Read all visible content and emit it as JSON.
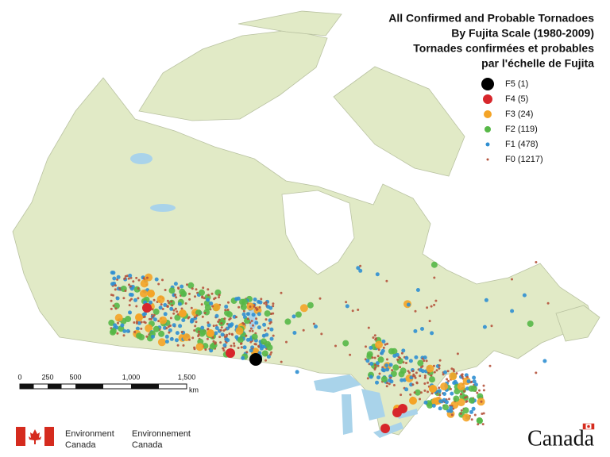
{
  "header": {
    "title": [
      "All Confirmed and Probable Tornadoes",
      "By Fujita Scale (1980-2009)",
      "Tornades confirmées et probables",
      "par l'échelle de Fujita"
    ]
  },
  "legend": [
    {
      "label": "F5 (1)",
      "color": "#000000"
    },
    {
      "label": "F4 (5)",
      "color": "#d7262b"
    },
    {
      "label": "F3 (24)",
      "color": "#f4a427"
    },
    {
      "label": "F2 (119)",
      "color": "#57b847"
    },
    {
      "label": "F1 (478)",
      "color": "#2f8fd1"
    },
    {
      "label": "F0 (1217)",
      "color": "#b5533c"
    }
  ],
  "scale_bar": {
    "labels": [
      "0",
      "250",
      "500",
      "1,000",
      "1,500"
    ],
    "unit": "km"
  },
  "footer": {
    "department_en": [
      "Environment",
      "Canada"
    ],
    "department_fr": [
      "Environnement",
      "Canada"
    ],
    "wordmark": "Canada"
  }
}
